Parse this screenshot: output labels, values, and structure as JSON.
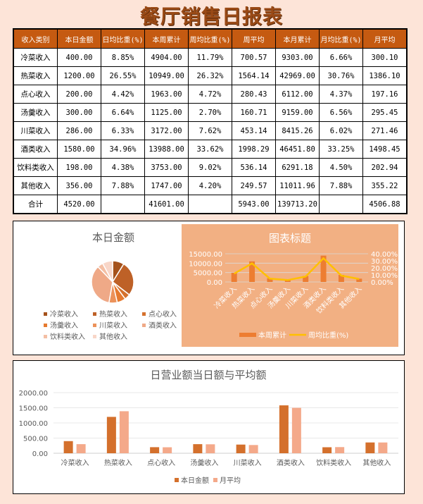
{
  "title": "餐厅销售日报表",
  "table": {
    "headers": [
      "收入类别",
      "本日金额",
      "日均比重(%)",
      "本周累计",
      "周均比重(%)",
      "周平均",
      "本月累计",
      "月均比重(%)",
      "月平均"
    ],
    "rows": [
      [
        "冷菜收入",
        "400.00",
        "8.85%",
        "4904.00",
        "11.79%",
        "700.57",
        "9303.00",
        "6.66%",
        "300.10"
      ],
      [
        "热菜收入",
        "1200.00",
        "26.55%",
        "10949.00",
        "26.32%",
        "1564.14",
        "42969.00",
        "30.76%",
        "1386.10"
      ],
      [
        "点心收入",
        "200.00",
        "4.42%",
        "1963.00",
        "4.72%",
        "280.43",
        "6112.00",
        "4.37%",
        "197.16"
      ],
      [
        "汤羹收入",
        "300.00",
        "6.64%",
        "1125.00",
        "2.70%",
        "160.71",
        "9159.00",
        "6.56%",
        "295.45"
      ],
      [
        "川菜收入",
        "286.00",
        "6.33%",
        "3172.00",
        "7.62%",
        "453.14",
        "8415.26",
        "6.02%",
        "271.46"
      ],
      [
        "酒类收入",
        "1580.00",
        "34.96%",
        "13988.00",
        "33.62%",
        "1998.29",
        "46451.80",
        "33.25%",
        "1498.45"
      ],
      [
        "饮料类收入",
        "198.00",
        "4.38%",
        "3753.00",
        "9.02%",
        "536.14",
        "6291.18",
        "4.50%",
        "202.94"
      ],
      [
        "其他收入",
        "356.00",
        "7.88%",
        "1747.00",
        "4.20%",
        "249.57",
        "11011.96",
        "7.88%",
        "355.22"
      ],
      [
        "合计",
        "4520.00",
        "",
        "41601.00",
        "",
        "5943.00",
        "139713.20",
        "",
        "4506.88"
      ]
    ]
  },
  "chart_data": [
    {
      "type": "pie",
      "title": "本日金额",
      "categories": [
        "冷菜收入",
        "热菜收入",
        "点心收入",
        "汤羹收入",
        "川菜收入",
        "酒类收入",
        "饮料类收入",
        "其他收入"
      ],
      "values": [
        400,
        1200,
        200,
        300,
        286,
        1580,
        198,
        356
      ],
      "colors": [
        "#a5521b",
        "#be6127",
        "#d5712d",
        "#e67a2f",
        "#ec925a",
        "#efa987",
        "#f4bfa4",
        "#f8d6c8"
      ],
      "legend": "bottom"
    },
    {
      "type": "bar+line",
      "title": "图表标题",
      "categories": [
        "冷菜收入",
        "热菜收入",
        "点心收入",
        "汤羹收入",
        "川菜收入",
        "酒类收入",
        "饮料类收入",
        "其他收入"
      ],
      "series": [
        {
          "name": "本周累计",
          "type": "bar",
          "values": [
            4904,
            10949,
            1963,
            1125,
            3172,
            13988,
            3753,
            1747
          ],
          "color": "#ed7d31"
        },
        {
          "name": "周均比重(%)",
          "type": "line",
          "axis": "right",
          "values": [
            11.79,
            26.32,
            4.72,
            2.7,
            7.62,
            33.62,
            9.02,
            4.2
          ],
          "color": "#ffc000"
        }
      ],
      "y_ticks": [
        "0.00",
        "5000.00",
        "10000.00",
        "15000.00"
      ],
      "y2_ticks": [
        "0.00%",
        "10.00%",
        "20.00%",
        "30.00%",
        "40.00%"
      ],
      "ylim": [
        0,
        15000
      ],
      "y2lim": [
        0,
        40
      ],
      "background": "#f2b083",
      "legend": "bottom"
    },
    {
      "type": "bar",
      "title": "日营业额当日额与平均额",
      "categories": [
        "冷菜收入",
        "热菜收入",
        "点心收入",
        "汤羹收入",
        "川菜收入",
        "酒类收入",
        "饮料类收入",
        "其他收入"
      ],
      "series": [
        {
          "name": "本日金额",
          "values": [
            400,
            1200,
            200,
            300,
            286,
            1580,
            198,
            356
          ],
          "color": "#d4702c"
        },
        {
          "name": "月平均",
          "values": [
            300.1,
            1386.1,
            197.16,
            295.45,
            271.46,
            1498.45,
            202.94,
            355.22
          ],
          "color": "#f4a98a"
        }
      ],
      "y_ticks": [
        "0.00",
        "500.00",
        "1000.00",
        "1500.00",
        "2000.00"
      ],
      "ylim": [
        0,
        2000
      ],
      "grid": true,
      "legend": "bottom"
    }
  ]
}
